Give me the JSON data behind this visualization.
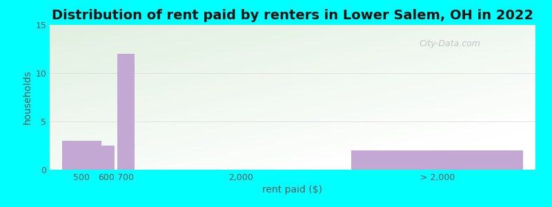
{
  "title": "Distribution of rent paid by renters in Lower Salem, OH in 2022",
  "xlabel": "rent paid ($)",
  "ylabel": "households",
  "background_color": "#00FFFF",
  "bar_color": "#c4a8d4",
  "bar_edge_color": "none",
  "values": [
    3,
    2.5,
    12,
    0,
    2
  ],
  "ylim": [
    0,
    15
  ],
  "yticks": [
    0,
    5,
    10,
    15
  ],
  "grid_color": "#dddddd",
  "title_fontsize": 14,
  "axis_label_fontsize": 10,
  "tick_fontsize": 9,
  "watermark_text": "City-Data.com",
  "bar_positions": [
    1.0,
    2.0,
    2.8,
    10.0,
    15.5
  ],
  "bar_widths": [
    1.6,
    0.7,
    0.7,
    0.01,
    7.0
  ],
  "tick_positions": [
    1.0,
    2.0,
    2.8,
    7.5,
    15.5
  ],
  "tick_labels": [
    "500",
    "600",
    "700",
    "2,000",
    "> 2,000"
  ],
  "xlim": [
    -0.3,
    19.5
  ]
}
